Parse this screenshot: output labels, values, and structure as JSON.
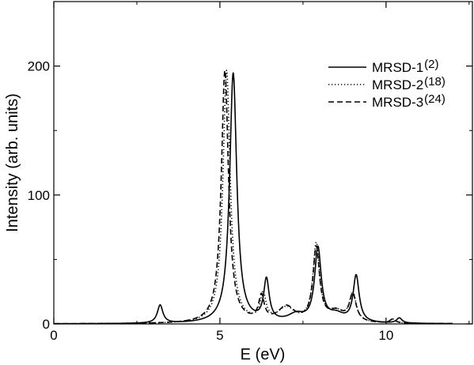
{
  "chart_data": {
    "type": "line",
    "title": "",
    "xlabel": "E (eV)",
    "ylabel": "Intensity (arb. units)",
    "xlim": [
      0,
      12.6
    ],
    "ylim": [
      0,
      250
    ],
    "x_ticks": [
      0,
      5,
      10
    ],
    "y_ticks": [
      0,
      100,
      200
    ],
    "x_tick_labels": [
      "0",
      "5",
      "10"
    ],
    "y_tick_labels": [
      "0",
      "100",
      "200"
    ],
    "grid": false,
    "legend_position": "top-right",
    "series": [
      {
        "name": "MRSD-1",
        "count": "(2)",
        "style": "solid",
        "peaks": [
          [
            3.2,
            14,
            0.1
          ],
          [
            5.4,
            194,
            0.13
          ],
          [
            6.4,
            32,
            0.1
          ],
          [
            7.3,
            6,
            0.3
          ],
          [
            7.95,
            57,
            0.12
          ],
          [
            8.5,
            6,
            0.3
          ],
          [
            9.1,
            36,
            0.11
          ],
          [
            10.4,
            4,
            0.1
          ]
        ]
      },
      {
        "name": "MRSD-2",
        "count": "(18)",
        "style": "dotted",
        "peaks": [
          [
            5.2,
            196,
            0.13
          ],
          [
            6.3,
            21,
            0.1
          ],
          [
            7.0,
            11,
            0.3
          ],
          [
            7.9,
            60,
            0.12
          ],
          [
            8.5,
            8,
            0.3
          ],
          [
            9.0,
            22,
            0.12
          ],
          [
            10.2,
            3,
            0.1
          ]
        ]
      },
      {
        "name": "MRSD-3",
        "count": "(24)",
        "style": "dashed",
        "peaks": [
          [
            5.15,
            196,
            0.13
          ],
          [
            6.25,
            19,
            0.1
          ],
          [
            7.0,
            12,
            0.3
          ],
          [
            7.9,
            57,
            0.12
          ],
          [
            8.5,
            8,
            0.3
          ],
          [
            9.0,
            21,
            0.12
          ],
          [
            10.2,
            3,
            0.1
          ]
        ]
      }
    ]
  }
}
